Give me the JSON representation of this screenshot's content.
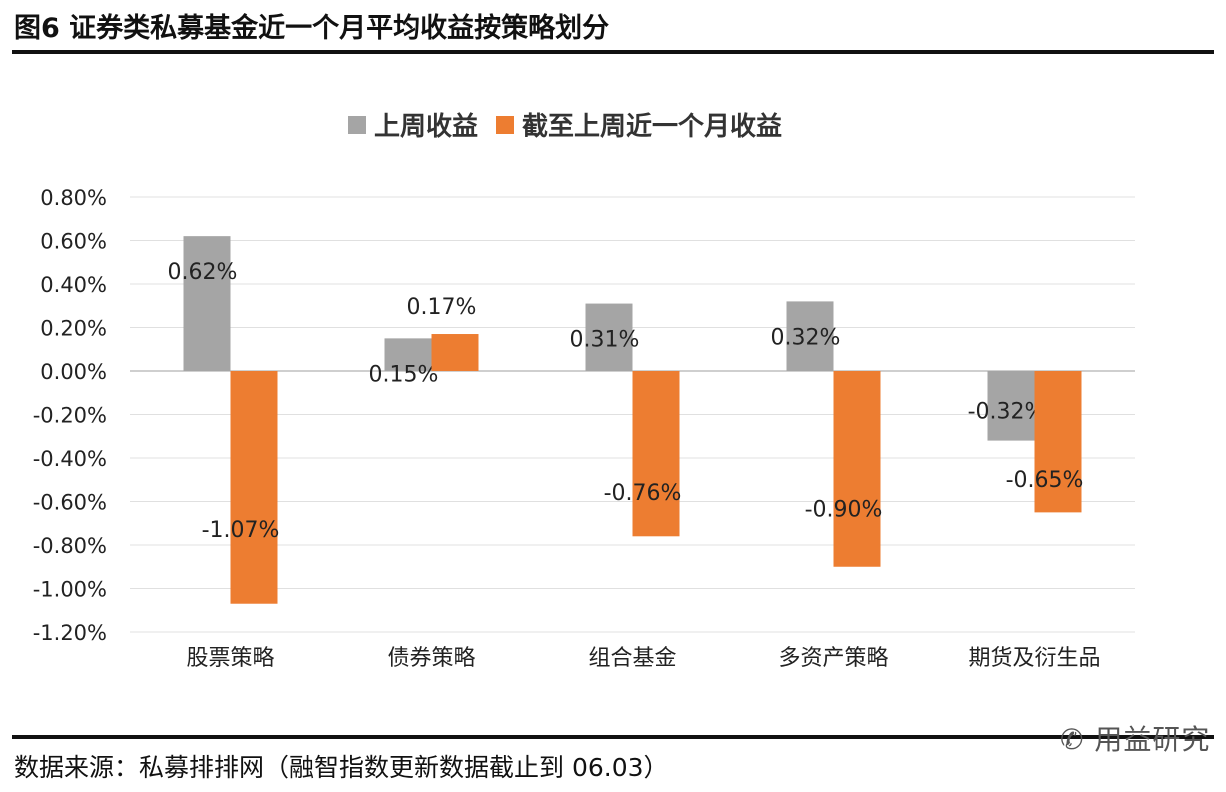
{
  "title": "图6  证券类私募基金近一个月平均收益按策略划分",
  "source": "数据来源：私募排排网（融智指数更新数据截止到 06.03）",
  "watermark": "用益研究",
  "chart_data": {
    "type": "bar",
    "title": "",
    "categories": [
      "股票策略",
      "债券策略",
      "组合基金",
      "多资产策略",
      "期货及衍生品"
    ],
    "series": [
      {
        "name": "上周收益",
        "color": "#a5a5a5",
        "values": [
          0.62,
          0.15,
          0.31,
          0.32,
          -0.32
        ],
        "labels": [
          "0.62%",
          "0.15%",
          "0.31%",
          "0.32%",
          "-0.32%"
        ]
      },
      {
        "name": "截至上周近一个月收益",
        "color": "#ed7d31",
        "values": [
          -1.07,
          0.17,
          -0.76,
          -0.9,
          -0.65
        ],
        "labels": [
          "-1.07%",
          "0.17%",
          "-0.76%",
          "-0.90%",
          "-0.65%"
        ]
      }
    ],
    "ylim": [
      -1.2,
      0.8
    ],
    "yticks": [
      "0.80%",
      "0.60%",
      "0.40%",
      "0.20%",
      "0.00%",
      "-0.20%",
      "-0.40%",
      "-0.60%",
      "-0.80%",
      "-1.00%",
      "-1.20%"
    ],
    "ytick_values": [
      0.8,
      0.6,
      0.4,
      0.2,
      0,
      -0.2,
      -0.4,
      -0.6,
      -0.8,
      -1.0,
      -1.2
    ],
    "grid": true,
    "legend": "top-center"
  }
}
